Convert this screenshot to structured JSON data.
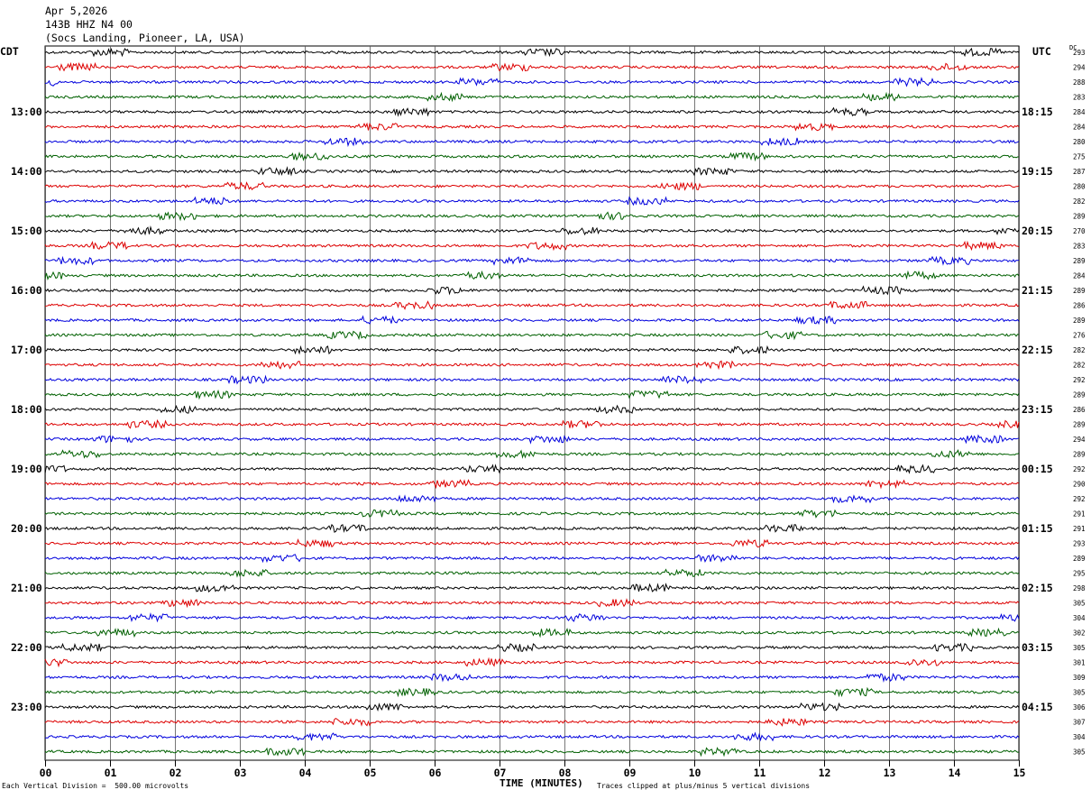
{
  "header": {
    "date": "Apr 5,2026",
    "station": "143B HHZ N4 00",
    "location": "(Socs Landing, Pioneer, LA, USA)"
  },
  "left_timezone": "CDT",
  "right_timezone": "UTC",
  "dc_header": "DC",
  "footer": {
    "scale": "Each Vertical Division =  500.00 microvolts",
    "xlabel": "TIME (MINUTES)",
    "clip_note": "Traces clipped at plus/minus 5 vertical divisions"
  },
  "colors": {
    "trace_cycle": [
      "#000000",
      "#dd0000",
      "#0000dd",
      "#006000"
    ],
    "grid": "#000000"
  },
  "chart_data": {
    "type": "line",
    "xlabel": "TIME (MINUTES)",
    "xlim": [
      0,
      15
    ],
    "x_ticks": [
      "00",
      "01",
      "02",
      "03",
      "04",
      "05",
      "06",
      "07",
      "08",
      "09",
      "10",
      "11",
      "12",
      "13",
      "14",
      "15"
    ],
    "left_hour_labels": [
      "13:00",
      "14:00",
      "15:00",
      "16:00",
      "17:00",
      "18:00",
      "19:00",
      "20:00",
      "21:00",
      "22:00",
      "23:00"
    ],
    "right_hour_labels": [
      "18:15",
      "19:15",
      "20:15",
      "21:15",
      "22:15",
      "23:15",
      "00:15",
      "01:15",
      "02:15",
      "03:15",
      "04:15"
    ],
    "dc_offsets": [
      293,
      294,
      288,
      283,
      284,
      284,
      280,
      275,
      287,
      280,
      282,
      289,
      270,
      283,
      289,
      284,
      289,
      286,
      289,
      276,
      282,
      282,
      292,
      289,
      286,
      289,
      294,
      289,
      292,
      290,
      292,
      291,
      291,
      293,
      289,
      295,
      298,
      305,
      304,
      302,
      305,
      301,
      309,
      305,
      306,
      307,
      304,
      305
    ],
    "trace_count": 48
  }
}
